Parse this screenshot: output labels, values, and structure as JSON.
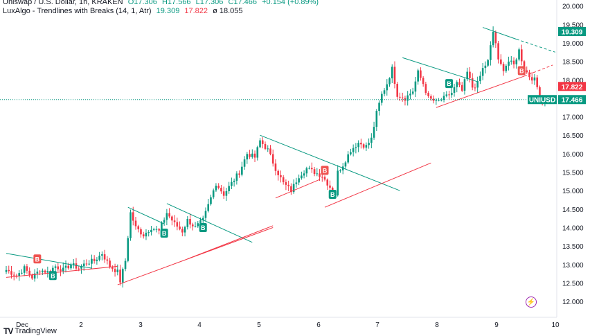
{
  "header": {
    "symbol_line": "Uniswap / U.S. Dollar, 1h, KRAKEN",
    "ohlc": {
      "o": "O17.306",
      "h": "H17.566",
      "l": "L17.306",
      "c": "C17.466",
      "chg": "+0.154 (+0.89%)"
    },
    "indicator": {
      "name": "LuxAlgo - Trendlines with Breaks (14, 1, Atr)",
      "v1": "19.309",
      "v2": "17.822",
      "v3": "ø  18.055"
    }
  },
  "brand": {
    "logo": "TV",
    "name": "TradingView"
  },
  "colors": {
    "up": "#089981",
    "down": "#f23645",
    "teal": "#089981",
    "red": "#f23645",
    "break": "#ef5350"
  },
  "icons": {
    "bolt": "lightning-icon"
  },
  "chart_data": {
    "type": "candlestick",
    "title": "Uniswap / U.S. Dollar, 1h, KRAKEN",
    "ylim": [
      11.75,
      20.05
    ],
    "y_ticks": [
      "20.000",
      "19.500",
      "19.000",
      "18.500",
      "18.000",
      "17.500",
      "17.000",
      "16.500",
      "16.000",
      "15.500",
      "15.000",
      "14.500",
      "14.000",
      "13.500",
      "13.000",
      "12.500",
      "12.000"
    ],
    "x_ticks": [
      "Dec",
      "2",
      "3",
      "4",
      "5",
      "6",
      "7",
      "8",
      "9",
      "10"
    ],
    "price_labels": [
      {
        "text": "19.309",
        "value": 19.309,
        "kind": "teal"
      },
      {
        "text": "17.822",
        "value": 17.822,
        "kind": "red"
      },
      {
        "text": "UNIUSD",
        "value": 17.466,
        "kind": "symbol"
      },
      {
        "text": "17.466",
        "value": 17.466,
        "kind": "teal"
      }
    ],
    "last_price": 17.466,
    "anchors": [
      [
        0,
        12.85
      ],
      [
        4,
        12.7
      ],
      [
        7,
        12.9
      ],
      [
        10,
        12.65
      ],
      [
        13,
        12.85
      ],
      [
        16,
        12.8
      ],
      [
        19,
        12.95
      ],
      [
        22,
        12.85
      ],
      [
        25,
        13.0
      ],
      [
        28,
        12.9
      ],
      [
        31,
        13.05
      ],
      [
        34,
        13.1
      ],
      [
        37,
        13.3
      ],
      [
        40,
        12.95
      ],
      [
        43,
        12.8
      ],
      [
        44,
        12.55
      ],
      [
        46,
        13.1
      ],
      [
        48,
        14.4
      ],
      [
        50,
        14.0
      ],
      [
        53,
        13.8
      ],
      [
        56,
        14.0
      ],
      [
        59,
        13.9
      ],
      [
        62,
        14.4
      ],
      [
        65,
        14.1
      ],
      [
        68,
        13.9
      ],
      [
        70,
        14.2
      ],
      [
        73,
        14.0
      ],
      [
        76,
        14.2
      ],
      [
        78,
        14.6
      ],
      [
        81,
        15.2
      ],
      [
        84,
        14.9
      ],
      [
        87,
        15.2
      ],
      [
        90,
        15.5
      ],
      [
        93,
        16.0
      ],
      [
        96,
        15.9
      ],
      [
        98,
        16.35
      ],
      [
        101,
        16.1
      ],
      [
        104,
        15.6
      ],
      [
        107,
        15.2
      ],
      [
        110,
        15.0
      ],
      [
        113,
        15.4
      ],
      [
        116,
        15.6
      ],
      [
        119,
        15.5
      ],
      [
        122,
        15.4
      ],
      [
        125,
        15.1
      ],
      [
        127,
        14.9
      ],
      [
        128,
        15.5
      ],
      [
        130,
        15.7
      ],
      [
        133,
        16.1
      ],
      [
        136,
        16.3
      ],
      [
        139,
        16.2
      ],
      [
        141,
        16.4
      ],
      [
        143,
        17.1
      ],
      [
        145,
        17.6
      ],
      [
        147,
        17.9
      ],
      [
        149,
        18.3
      ],
      [
        151,
        17.6
      ],
      [
        154,
        17.5
      ],
      [
        157,
        17.7
      ],
      [
        159,
        18.2
      ],
      [
        161,
        17.9
      ],
      [
        163,
        17.5
      ],
      [
        166,
        17.4
      ],
      [
        169,
        17.5
      ],
      [
        172,
        17.65
      ],
      [
        174,
        17.9
      ],
      [
        176,
        17.7
      ],
      [
        178,
        18.2
      ],
      [
        180,
        17.8
      ],
      [
        182,
        17.9
      ],
      [
        184,
        18.3
      ],
      [
        186,
        18.5
      ],
      [
        188,
        19.3
      ],
      [
        189,
        19.0
      ],
      [
        190,
        18.5
      ],
      [
        192,
        18.3
      ],
      [
        194,
        18.5
      ],
      [
        196,
        18.4
      ],
      [
        198,
        18.8
      ],
      [
        200,
        18.3
      ],
      [
        202,
        18.1
      ],
      [
        204,
        18.0
      ],
      [
        206,
        17.6
      ],
      [
        207,
        17.4
      ],
      [
        208,
        17.466
      ]
    ],
    "trendlines": [
      {
        "color": "teal",
        "dashed": false,
        "from": [
          0,
          13.3
        ],
        "to": [
          33,
          12.9
        ]
      },
      {
        "color": "red",
        "dashed": false,
        "from": [
          0,
          12.65
        ],
        "to": [
          43,
          12.95
        ]
      },
      {
        "color": "teal",
        "dashed": false,
        "from": [
          47,
          14.55
        ],
        "to": [
          61,
          14.1
        ]
      },
      {
        "color": "teal",
        "dashed": false,
        "from": [
          62,
          14.65
        ],
        "to": [
          95,
          13.6
        ]
      },
      {
        "color": "red",
        "dashed": false,
        "from": [
          43,
          12.45
        ],
        "to": [
          103,
          14.0
        ]
      },
      {
        "color": "red",
        "dashed": false,
        "from": [
          70,
          13.15
        ],
        "to": [
          103,
          14.05
        ]
      },
      {
        "color": "teal",
        "dashed": false,
        "from": [
          98,
          16.5
        ],
        "to": [
          152,
          15.0
        ]
      },
      {
        "color": "red",
        "dashed": false,
        "from": [
          104,
          14.8
        ],
        "to": [
          121,
          15.3
        ]
      },
      {
        "color": "red",
        "dashed": false,
        "from": [
          123,
          14.55
        ],
        "to": [
          164,
          15.75
        ]
      },
      {
        "color": "teal",
        "dashed": false,
        "from": [
          153,
          18.6
        ],
        "to": [
          182,
          17.95
        ]
      },
      {
        "color": "red",
        "dashed": false,
        "from": [
          166,
          17.25
        ],
        "to": [
          200,
          18.1
        ]
      },
      {
        "color": "red",
        "dashed": true,
        "from": [
          200,
          18.1
        ],
        "to": [
          211,
          18.4
        ]
      },
      {
        "color": "teal",
        "dashed": false,
        "from": [
          184,
          19.42
        ],
        "to": [
          197,
          19.1
        ]
      },
      {
        "color": "teal",
        "dashed": true,
        "from": [
          197,
          19.1
        ],
        "to": [
          212,
          18.75
        ]
      }
    ],
    "break_labels": [
      {
        "text": "B",
        "x": 12,
        "y": 13.15,
        "kind": "red"
      },
      {
        "text": "B",
        "x": 18,
        "y": 12.7,
        "kind": "teal"
      },
      {
        "text": "B",
        "x": 61,
        "y": 13.85,
        "kind": "teal"
      },
      {
        "text": "B",
        "x": 76,
        "y": 14.0,
        "kind": "teal"
      },
      {
        "text": "B",
        "x": 123,
        "y": 15.55,
        "kind": "red"
      },
      {
        "text": "B",
        "x": 126,
        "y": 14.9,
        "kind": "teal"
      },
      {
        "text": "B",
        "x": 171,
        "y": 17.9,
        "kind": "teal"
      },
      {
        "text": "B",
        "x": 199,
        "y": 18.25,
        "kind": "red"
      }
    ]
  }
}
